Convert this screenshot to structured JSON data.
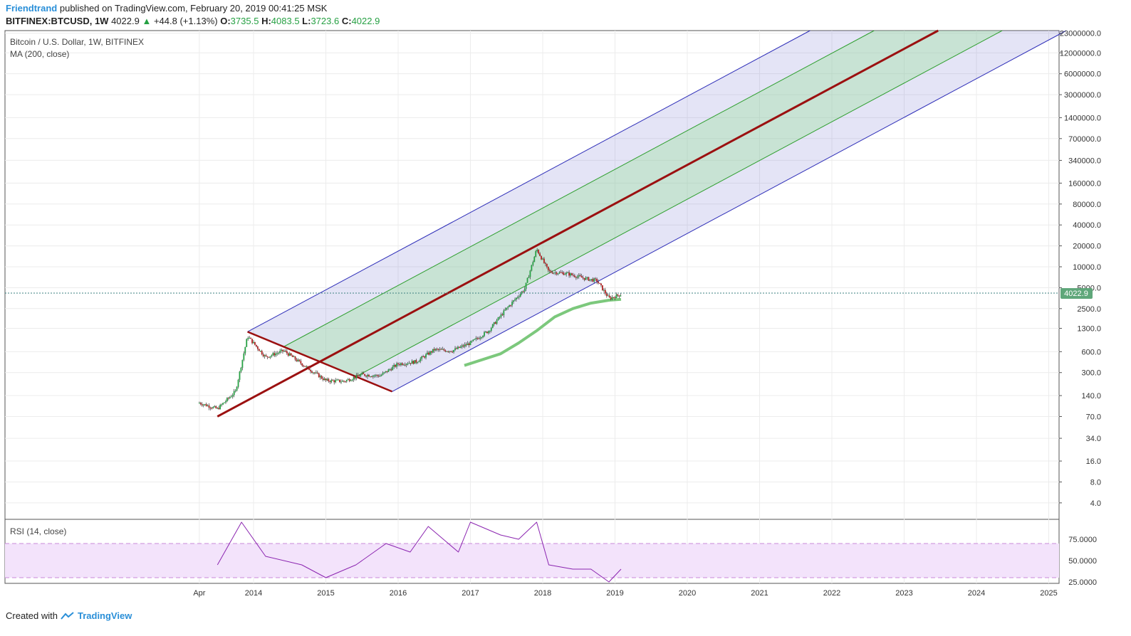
{
  "header": {
    "author": "Friendtrand",
    "published": "published on TradingView.com, February 20, 2019 00:41:25 MSK",
    "symbol": "BITFINEX:BTCUSD, 1W",
    "price": "4022.9",
    "change_arrow": "▲",
    "change": "+44.8 (+1.13%)",
    "o_label": "O:",
    "o_value": "3735.5",
    "h_label": "H:",
    "h_value": "4083.5",
    "l_label": "L:",
    "l_value": "3723.6",
    "c_label": "C:",
    "c_value": "4022.9"
  },
  "legend": {
    "title": "Bitcoin / U.S. Dollar, 1W, BITFINEX",
    "ma": "MA (200, close)",
    "rsi": "RSI (14, close)"
  },
  "footer": {
    "created_with": "Created with",
    "brand": "TradingView"
  },
  "colors": {
    "up_candle": "#26a043",
    "down_candle": "#b22222",
    "ma": "#7cc87c",
    "rsi_line": "#8b25b0",
    "rsi_band": "#f3e3fb",
    "channel_outer": "#2e2eb8",
    "channel_inner": "#2e9e2e",
    "median": "#9b1010",
    "last_price": "#5fa77a"
  },
  "chart_data": [
    {
      "type": "candlestick",
      "title": "Bitcoin / U.S. Dollar, 1W, BITFINEX",
      "y_scale": "log",
      "x_ticks": [
        "Apr",
        "2014",
        "2015",
        "2016",
        "2017",
        "2018",
        "2019",
        "2020",
        "2021",
        "2022",
        "2023",
        "2024",
        "2025"
      ],
      "y_ticks": [
        "23000000.0",
        "12000000.0",
        "6000000.0",
        "3000000.0",
        "1400000.0",
        "700000.0",
        "340000.0",
        "160000.0",
        "80000.0",
        "40000.0",
        "20000.0",
        "10000.0",
        "5000.0",
        "2500.0",
        "1300.0",
        "600.0",
        "300.0",
        "140.0",
        "70.0",
        "34.0",
        "16.0",
        "8.0",
        "4.0"
      ],
      "last_price": "4022.9",
      "series_approx_close": {
        "dates": [
          "2013-04",
          "2013-07",
          "2013-10",
          "2013-12",
          "2014-03",
          "2014-06",
          "2014-09",
          "2015-01",
          "2015-04",
          "2015-07",
          "2015-10",
          "2016-01",
          "2016-04",
          "2016-07",
          "2016-10",
          "2017-01",
          "2017-04",
          "2017-07",
          "2017-10",
          "2017-12",
          "2018-02",
          "2018-05",
          "2018-08",
          "2018-10",
          "2018-12",
          "2019-02"
        ],
        "close": [
          110,
          90,
          160,
          1000,
          500,
          620,
          400,
          230,
          225,
          280,
          270,
          400,
          430,
          640,
          620,
          800,
          1200,
          2500,
          4800,
          18000,
          8500,
          8000,
          6800,
          6300,
          3500,
          4022.9
        ]
      },
      "ma_200": {
        "dates": [
          "2016-12",
          "2017-06",
          "2017-09",
          "2017-12",
          "2018-03",
          "2018-06",
          "2018-09",
          "2018-12",
          "2019-02"
        ],
        "values": [
          380,
          560,
          800,
          1200,
          1900,
          2500,
          3000,
          3300,
          3400
        ]
      },
      "pitchfork": {
        "p1": {
          "date": "2013-07",
          "price": 70
        },
        "p2": {
          "date": "2013-12",
          "price": 1160
        },
        "p3": {
          "date": "2015-12",
          "price": 160
        }
      }
    },
    {
      "type": "line",
      "title": "RSI (14, close)",
      "y_ticks": [
        "75.0000",
        "50.0000",
        "25.0000"
      ],
      "band": [
        30,
        70
      ],
      "dates": [
        "2013-07",
        "2013-11",
        "2014-03",
        "2014-09",
        "2015-01",
        "2015-06",
        "2015-11",
        "2016-03",
        "2016-06",
        "2016-11",
        "2017-01",
        "2017-06",
        "2017-09",
        "2017-12",
        "2018-02",
        "2018-06",
        "2018-09",
        "2018-12",
        "2019-02"
      ],
      "values": [
        45,
        95,
        55,
        45,
        30,
        45,
        70,
        60,
        90,
        60,
        95,
        80,
        75,
        95,
        45,
        40,
        40,
        25,
        40
      ]
    }
  ]
}
